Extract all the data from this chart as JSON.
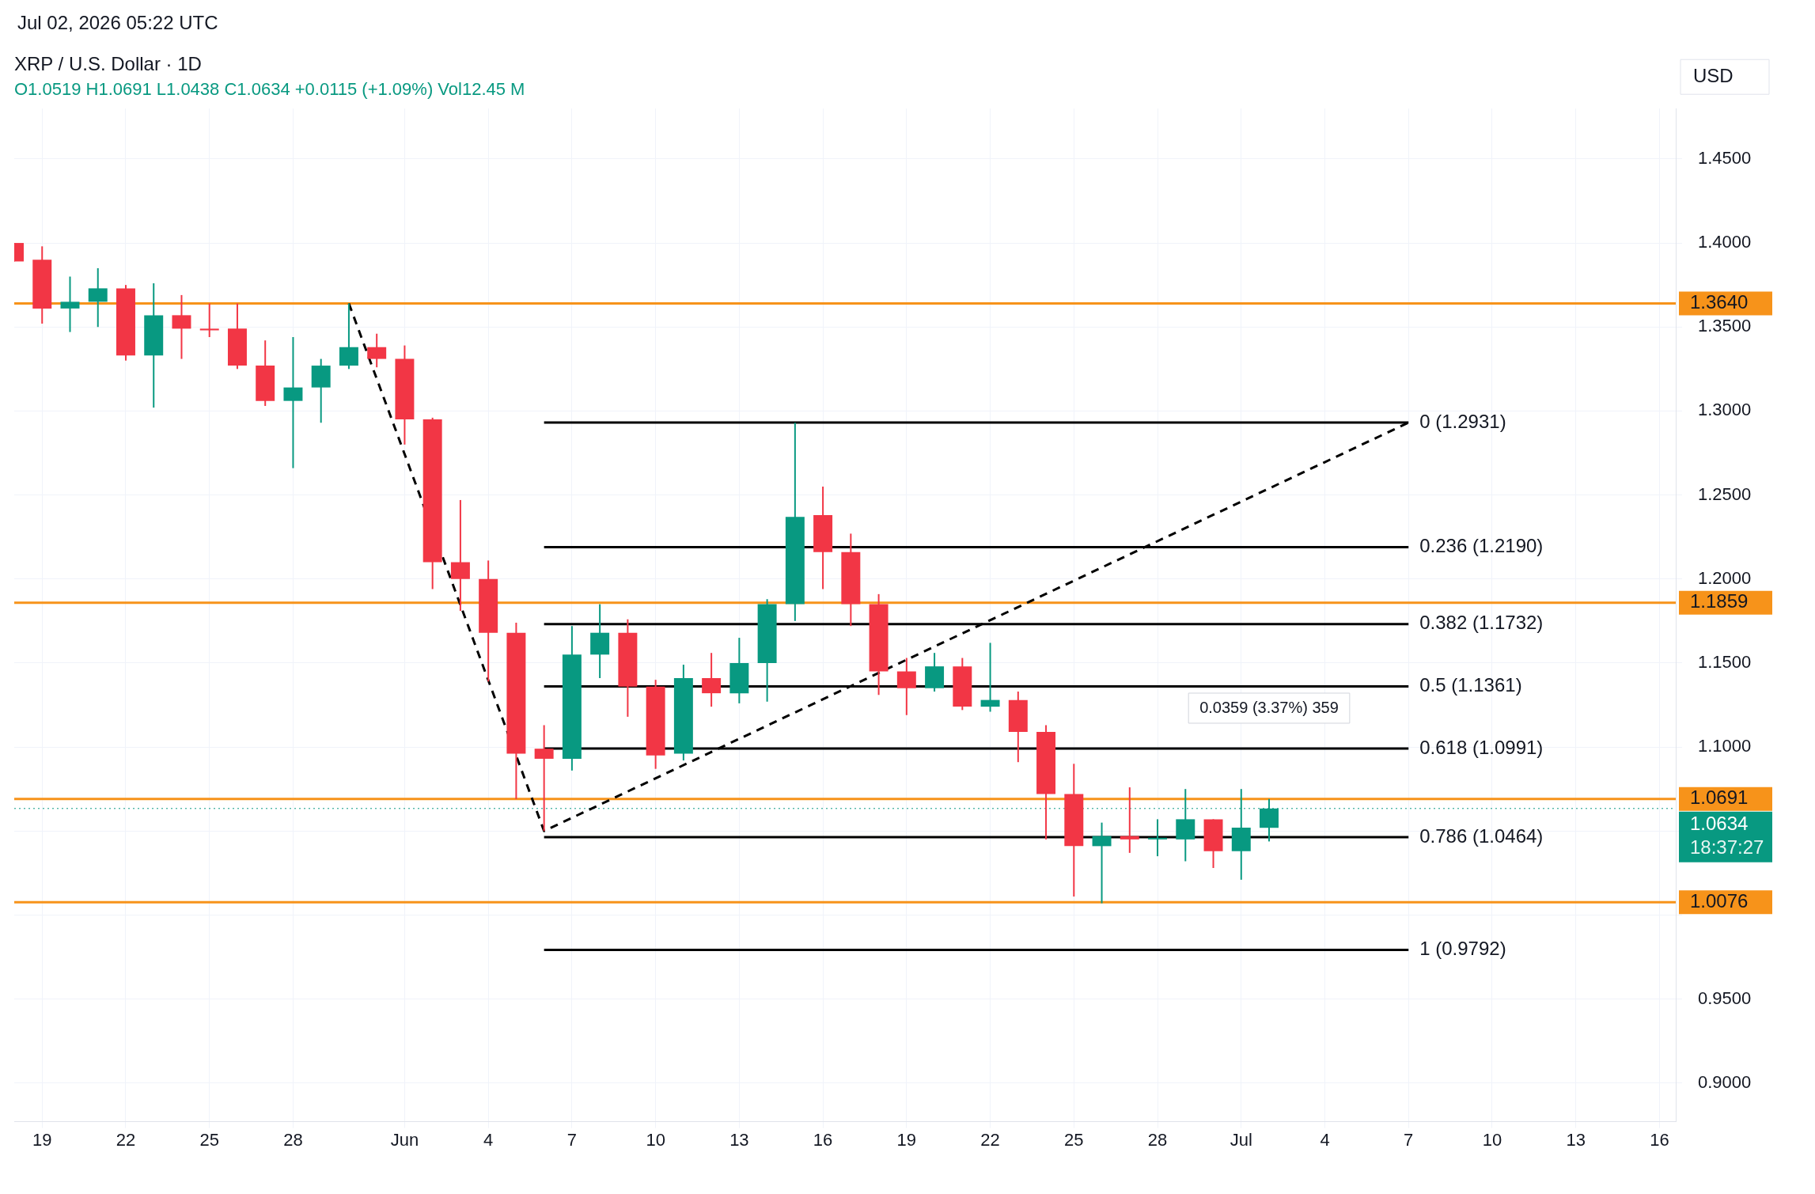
{
  "chart_data": {
    "type": "candlestick",
    "title": "XRP / U.S. Dollar · 1D",
    "subtitle": "O1.0519 H1.0691 L1.0438 C1.0634 +0.0115 (+1.09%) Vol12.45 M",
    "ylabel": "USD",
    "x": [
      "2026-05-18",
      "2026-05-19",
      "2026-05-20",
      "2026-05-21",
      "2026-05-22",
      "2026-05-23",
      "2026-05-24",
      "2026-05-25",
      "2026-05-26",
      "2026-05-27",
      "2026-05-28",
      "2026-05-29",
      "2026-05-30",
      "2026-05-31",
      "2026-06-01",
      "2026-06-02",
      "2026-06-03",
      "2026-06-04",
      "2026-06-05",
      "2026-06-06",
      "2026-06-07",
      "2026-06-08",
      "2026-06-09",
      "2026-06-10",
      "2026-06-11",
      "2026-06-12",
      "2026-06-13",
      "2026-06-14",
      "2026-06-15",
      "2026-06-16",
      "2026-06-17",
      "2026-06-18",
      "2026-06-19",
      "2026-06-20",
      "2026-06-21",
      "2026-06-22",
      "2026-06-23",
      "2026-06-24",
      "2026-06-25",
      "2026-06-26",
      "2026-06-27",
      "2026-06-28",
      "2026-06-29",
      "2026-06-30",
      "2026-07-01",
      "2026-07-02"
    ],
    "ohlc": [
      [
        1.4,
        1.4,
        1.389,
        1.389
      ],
      [
        1.39,
        1.398,
        1.352,
        1.361
      ],
      [
        1.361,
        1.38,
        1.347,
        1.365
      ],
      [
        1.365,
        1.385,
        1.35,
        1.373
      ],
      [
        1.373,
        1.375,
        1.33,
        1.333
      ],
      [
        1.333,
        1.376,
        1.302,
        1.357
      ],
      [
        1.357,
        1.369,
        1.331,
        1.349
      ],
      [
        1.349,
        1.364,
        1.344,
        1.348
      ],
      [
        1.349,
        1.364,
        1.325,
        1.327
      ],
      [
        1.327,
        1.342,
        1.303,
        1.306
      ],
      [
        1.306,
        1.344,
        1.266,
        1.314
      ],
      [
        1.314,
        1.331,
        1.293,
        1.327
      ],
      [
        1.327,
        1.364,
        1.325,
        1.338
      ],
      [
        1.338,
        1.346,
        1.326,
        1.331
      ],
      [
        1.331,
        1.339,
        1.28,
        1.295
      ],
      [
        1.295,
        1.296,
        1.194,
        1.21
      ],
      [
        1.21,
        1.247,
        1.181,
        1.2
      ],
      [
        1.2,
        1.211,
        1.139,
        1.168
      ],
      [
        1.168,
        1.174,
        1.069,
        1.096
      ],
      [
        1.099,
        1.113,
        1.05,
        1.093
      ],
      [
        1.093,
        1.172,
        1.086,
        1.155
      ],
      [
        1.155,
        1.185,
        1.141,
        1.168
      ],
      [
        1.168,
        1.176,
        1.118,
        1.136
      ],
      [
        1.136,
        1.14,
        1.087,
        1.095
      ],
      [
        1.096,
        1.149,
        1.092,
        1.141
      ],
      [
        1.141,
        1.156,
        1.124,
        1.132
      ],
      [
        1.132,
        1.165,
        1.126,
        1.15
      ],
      [
        1.15,
        1.188,
        1.127,
        1.185
      ],
      [
        1.185,
        1.293,
        1.175,
        1.237
      ],
      [
        1.238,
        1.255,
        1.194,
        1.216
      ],
      [
        1.216,
        1.227,
        1.172,
        1.185
      ],
      [
        1.185,
        1.191,
        1.131,
        1.145
      ],
      [
        1.145,
        1.153,
        1.119,
        1.135
      ],
      [
        1.135,
        1.156,
        1.133,
        1.148
      ],
      [
        1.148,
        1.153,
        1.122,
        1.124
      ],
      [
        1.124,
        1.162,
        1.121,
        1.128
      ],
      [
        1.128,
        1.133,
        1.091,
        1.109
      ],
      [
        1.109,
        1.113,
        1.045,
        1.072
      ],
      [
        1.072,
        1.09,
        1.011,
        1.041
      ],
      [
        1.041,
        1.055,
        1.007,
        1.047
      ],
      [
        1.047,
        1.076,
        1.037,
        1.045
      ],
      [
        1.045,
        1.057,
        1.035,
        1.046
      ],
      [
        1.045,
        1.075,
        1.032,
        1.057
      ],
      [
        1.057,
        1.057,
        1.028,
        1.038
      ],
      [
        1.038,
        1.075,
        1.021,
        1.052
      ],
      [
        1.0519,
        1.0691,
        1.0438,
        1.0634
      ]
    ],
    "colors": [
      "#f23645",
      "#f23645",
      "#089981",
      "#089981",
      "#f23645",
      "#089981",
      "#f23645",
      "#f23645",
      "#f23645",
      "#f23645",
      "#089981",
      "#089981",
      "#089981",
      "#f23645",
      "#f23645",
      "#f23645",
      "#f23645",
      "#f23645",
      "#f23645",
      "#f23645",
      "#089981",
      "#089981",
      "#f23645",
      "#f23645",
      "#089981",
      "#f23645",
      "#089981",
      "#089981",
      "#089981",
      "#f23645",
      "#f23645",
      "#f23645",
      "#f23645",
      "#089981",
      "#f23645",
      "#089981",
      "#f23645",
      "#f23645",
      "#f23645",
      "#089981",
      "#f23645",
      "#089981",
      "#089981",
      "#f23645",
      "#089981",
      "#089981"
    ],
    "series": [
      {
        "type": "line",
        "line_style": "dashed",
        "color": "#000000",
        "x": [
          "2026-05-30",
          "2026-06-06",
          "2026-07-07"
        ],
        "values": [
          1.364,
          1.05,
          1.2931
        ]
      },
      {
        "type": "line",
        "name": "0 (1.2931)",
        "color": "#000000",
        "x": [
          "2026-06-06",
          "2026-07-07"
        ],
        "values": [
          1.2931,
          1.2931
        ]
      },
      {
        "type": "line",
        "name": "0.236 (1.2190)",
        "color": "#000000",
        "x": [
          "2026-06-06",
          "2026-07-07"
        ],
        "values": [
          1.219,
          1.219
        ]
      },
      {
        "type": "line",
        "name": "0.382 (1.1732)",
        "color": "#000000",
        "x": [
          "2026-06-06",
          "2026-07-07"
        ],
        "values": [
          1.1732,
          1.1732
        ]
      },
      {
        "type": "line",
        "name": "0.5 (1.1361)",
        "color": "#000000",
        "x": [
          "2026-06-06",
          "2026-07-07"
        ],
        "values": [
          1.1361,
          1.1361
        ]
      },
      {
        "type": "line",
        "name": "0.618 (1.0991)",
        "color": "#000000",
        "x": [
          "2026-06-06",
          "2026-07-07"
        ],
        "values": [
          1.0991,
          1.0991
        ]
      },
      {
        "type": "line",
        "name": "0.786 (1.0464)",
        "color": "#000000",
        "x": [
          "2026-06-06",
          "2026-07-07"
        ],
        "values": [
          1.0464,
          1.0464
        ]
      },
      {
        "type": "line",
        "name": "1 (0.9792)",
        "color": "#000000",
        "x": [
          "2026-06-06",
          "2026-07-07"
        ],
        "values": [
          0.9792,
          0.9792
        ]
      }
    ],
    "ref_lines": [
      {
        "axis": "y",
        "value": 1.364,
        "label": "1.3640",
        "color": "#f7931a"
      },
      {
        "axis": "y",
        "value": 1.1859,
        "label": "1.1859",
        "color": "#f7931a"
      },
      {
        "axis": "y",
        "value": 1.0691,
        "label": "1.0691",
        "color": "#f7931a"
      },
      {
        "axis": "y",
        "value": 1.0076,
        "label": "1.0076",
        "color": "#f7931a"
      },
      {
        "axis": "y",
        "value": 1.0634,
        "label": "1.0634",
        "color": "#089981",
        "line_style": "dotted"
      }
    ],
    "annotations": [
      "Jul 02, 2026 05:22 UTC",
      "18:37:27",
      {
        "text": "0.0359 (3.37%) 359",
        "x": "2026-07-02",
        "y": 1.0991
      }
    ],
    "xlim": [
      "2026-05-18",
      "2026-07-16T14:00"
    ],
    "xticks": [
      {
        "value": "2026-05-19",
        "label": "19"
      },
      {
        "value": "2026-05-22",
        "label": "22"
      },
      {
        "value": "2026-05-25",
        "label": "25"
      },
      {
        "value": "2026-05-28",
        "label": "28"
      },
      {
        "value": "2026-06-01",
        "label": "Jun"
      },
      {
        "value": "2026-06-04",
        "label": "4"
      },
      {
        "value": "2026-06-07",
        "label": "7"
      },
      {
        "value": "2026-06-10",
        "label": "10"
      },
      {
        "value": "2026-06-13",
        "label": "13"
      },
      {
        "value": "2026-06-16",
        "label": "16"
      },
      {
        "value": "2026-06-19",
        "label": "19"
      },
      {
        "value": "2026-06-22",
        "label": "22"
      },
      {
        "value": "2026-06-25",
        "label": "25"
      },
      {
        "value": "2026-06-28",
        "label": "28"
      },
      {
        "value": "2026-07-01",
        "label": "Jul"
      },
      {
        "value": "2026-07-04",
        "label": "4"
      },
      {
        "value": "2026-07-07",
        "label": "7"
      },
      {
        "value": "2026-07-10",
        "label": "10"
      },
      {
        "value": "2026-07-13",
        "label": "13"
      },
      {
        "value": "2026-07-16",
        "label": "16"
      }
    ],
    "ylim": [
      0.877,
      1.48
    ],
    "yticks": [
      {
        "value": 0.9,
        "label": "0.9000"
      },
      {
        "value": 0.95,
        "label": "0.9500"
      },
      {
        "value": 1.0,
        "label": null
      },
      {
        "value": 1.05,
        "label": null
      },
      {
        "value": 1.1,
        "label": "1.1000"
      },
      {
        "value": 1.15,
        "label": "1.1500"
      },
      {
        "value": 1.2,
        "label": "1.2000"
      },
      {
        "value": 1.25,
        "label": "1.2500"
      },
      {
        "value": 1.3,
        "label": "1.3000"
      },
      {
        "value": 1.35,
        "label": "1.3500"
      },
      {
        "value": 1.4,
        "label": "1.4000"
      },
      {
        "value": 1.45,
        "label": "1.4500"
      }
    ],
    "grid": true,
    "legend": false
  }
}
